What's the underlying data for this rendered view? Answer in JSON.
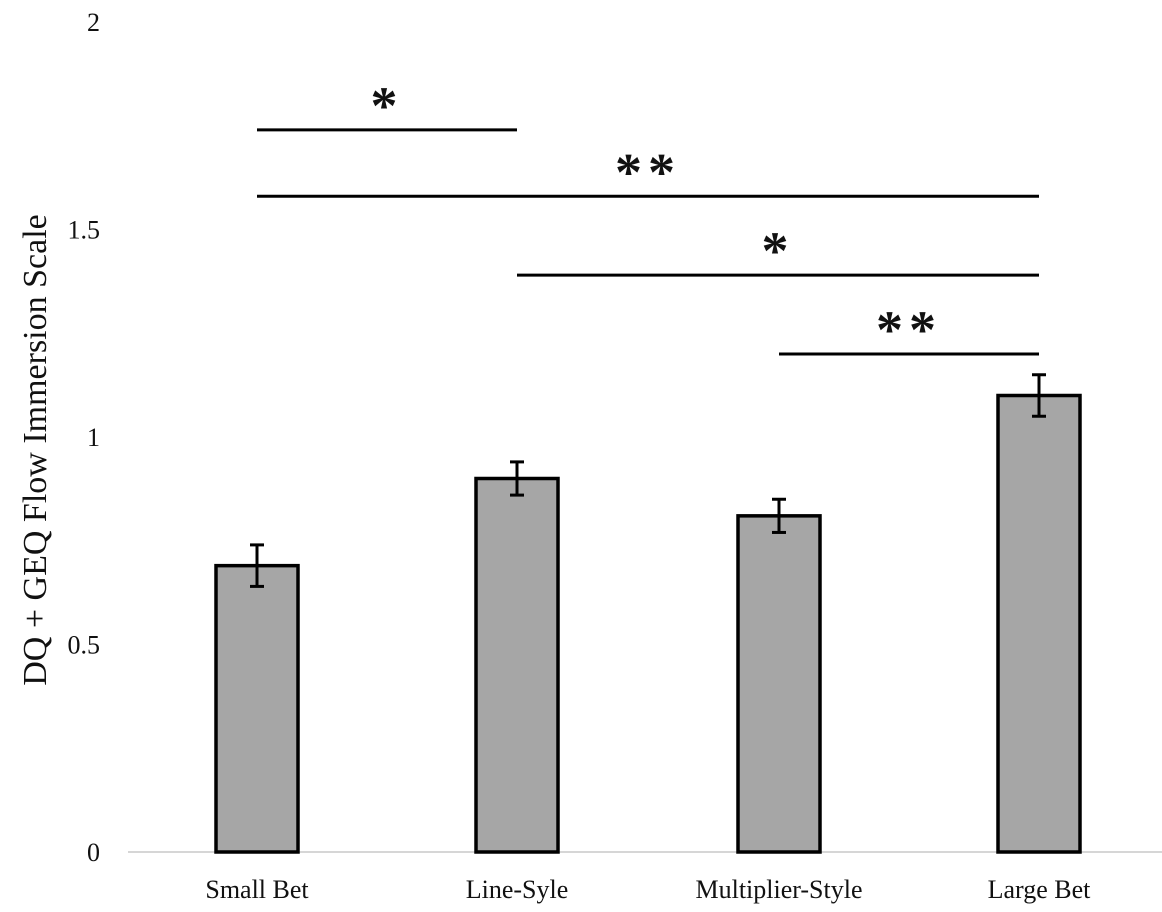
{
  "chart_data": {
    "type": "bar",
    "title": "",
    "xlabel": "",
    "ylabel": "DQ + GEQ Flow Immersion Scale",
    "categories": [
      "Small Bet",
      "Line-Syle",
      "Multiplier-Style",
      "Large Bet"
    ],
    "values": [
      0.69,
      0.9,
      0.81,
      1.1
    ],
    "error": [
      0.05,
      0.04,
      0.04,
      0.05
    ],
    "ylim": [
      0,
      2
    ],
    "yticks": [
      0,
      0.5,
      1,
      1.5,
      2
    ],
    "ytick_labels": [
      "0",
      "0.5",
      "1",
      "1.5",
      "2"
    ],
    "grid": false,
    "bar_color": "#a6a6a6",
    "bar_edge_color": "#000000",
    "significance": [
      {
        "from": 0,
        "to": 1,
        "y": 1.74,
        "label": "*"
      },
      {
        "from": 0,
        "to": 3,
        "y": 1.58,
        "label": "**"
      },
      {
        "from": 1,
        "to": 3,
        "y": 1.39,
        "label": "*"
      },
      {
        "from": 2,
        "to": 3,
        "y": 1.2,
        "label": "**"
      }
    ]
  }
}
